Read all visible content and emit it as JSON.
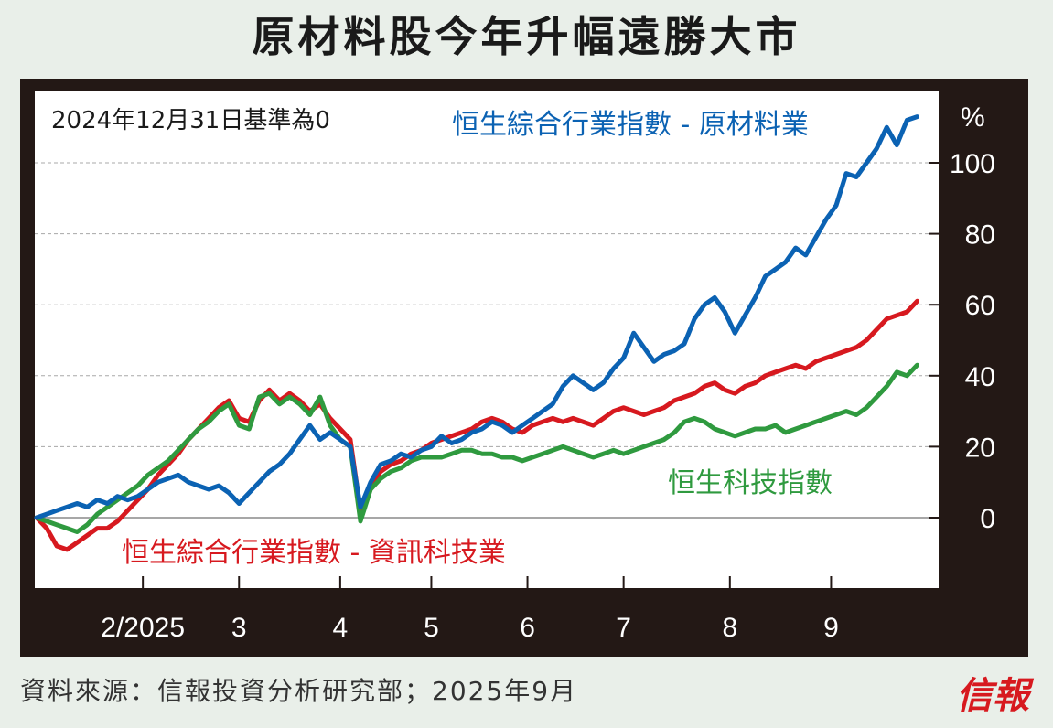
{
  "chart_data": {
    "type": "line",
    "title": "原材料股今年升幅遠勝大市",
    "note": "2024年12月31日基準為0",
    "ylabel": "%",
    "ylim": [
      -20,
      118
    ],
    "yticks": [
      0,
      20,
      40,
      60,
      80,
      100
    ],
    "xticks": [
      {
        "label": "2/2025",
        "x": 21
      },
      {
        "label": "3",
        "x": 40
      },
      {
        "label": "4",
        "x": 60
      },
      {
        "label": "5",
        "x": 78
      },
      {
        "label": "6",
        "x": 97
      },
      {
        "label": "7",
        "x": 116
      },
      {
        "label": "8",
        "x": 137
      },
      {
        "label": "9",
        "x": 157
      }
    ],
    "xlim": [
      0,
      175
    ],
    "grid": true,
    "series": [
      {
        "name": "恒生綜合行業指數 - 原材料業",
        "color": "#0b62b3",
        "points": [
          [
            0,
            0
          ],
          [
            2,
            1
          ],
          [
            4,
            2
          ],
          [
            6,
            3
          ],
          [
            8,
            4
          ],
          [
            10,
            3
          ],
          [
            12,
            5
          ],
          [
            14,
            4
          ],
          [
            16,
            6
          ],
          [
            18,
            5
          ],
          [
            20,
            6
          ],
          [
            22,
            8
          ],
          [
            24,
            10
          ],
          [
            26,
            11
          ],
          [
            28,
            12
          ],
          [
            30,
            10
          ],
          [
            32,
            9
          ],
          [
            34,
            8
          ],
          [
            36,
            9
          ],
          [
            38,
            7
          ],
          [
            40,
            4
          ],
          [
            42,
            7
          ],
          [
            44,
            10
          ],
          [
            46,
            13
          ],
          [
            48,
            15
          ],
          [
            50,
            18
          ],
          [
            52,
            22
          ],
          [
            54,
            26
          ],
          [
            56,
            22
          ],
          [
            58,
            24
          ],
          [
            60,
            22
          ],
          [
            62,
            20
          ],
          [
            64,
            3
          ],
          [
            66,
            10
          ],
          [
            68,
            15
          ],
          [
            70,
            16
          ],
          [
            72,
            18
          ],
          [
            74,
            17
          ],
          [
            76,
            19
          ],
          [
            78,
            20
          ],
          [
            80,
            23
          ],
          [
            82,
            21
          ],
          [
            84,
            22
          ],
          [
            86,
            24
          ],
          [
            88,
            25
          ],
          [
            90,
            27
          ],
          [
            92,
            26
          ],
          [
            94,
            24
          ],
          [
            96,
            26
          ],
          [
            98,
            28
          ],
          [
            100,
            30
          ],
          [
            102,
            32
          ],
          [
            104,
            37
          ],
          [
            106,
            40
          ],
          [
            108,
            38
          ],
          [
            110,
            36
          ],
          [
            112,
            38
          ],
          [
            114,
            42
          ],
          [
            116,
            45
          ],
          [
            118,
            52
          ],
          [
            120,
            48
          ],
          [
            122,
            44
          ],
          [
            124,
            46
          ],
          [
            126,
            47
          ],
          [
            128,
            49
          ],
          [
            130,
            56
          ],
          [
            132,
            60
          ],
          [
            134,
            62
          ],
          [
            136,
            58
          ],
          [
            138,
            52
          ],
          [
            140,
            57
          ],
          [
            142,
            62
          ],
          [
            144,
            68
          ],
          [
            146,
            70
          ],
          [
            148,
            72
          ],
          [
            150,
            76
          ],
          [
            152,
            74
          ],
          [
            154,
            79
          ],
          [
            156,
            84
          ],
          [
            158,
            88
          ],
          [
            160,
            97
          ],
          [
            162,
            96
          ],
          [
            164,
            100
          ],
          [
            166,
            104
          ],
          [
            168,
            110
          ],
          [
            170,
            105
          ],
          [
            172,
            112
          ],
          [
            174,
            113
          ]
        ]
      },
      {
        "name": "恒生綜合行業指數 - 資訊科技業",
        "color": "#d7191f",
        "points": [
          [
            0,
            0
          ],
          [
            2,
            -3
          ],
          [
            4,
            -8
          ],
          [
            6,
            -9
          ],
          [
            8,
            -7
          ],
          [
            10,
            -5
          ],
          [
            12,
            -3
          ],
          [
            14,
            -3
          ],
          [
            16,
            -1
          ],
          [
            18,
            2
          ],
          [
            20,
            5
          ],
          [
            22,
            8
          ],
          [
            24,
            12
          ],
          [
            26,
            15
          ],
          [
            28,
            18
          ],
          [
            30,
            22
          ],
          [
            32,
            25
          ],
          [
            34,
            28
          ],
          [
            36,
            31
          ],
          [
            38,
            33
          ],
          [
            40,
            28
          ],
          [
            42,
            27
          ],
          [
            44,
            33
          ],
          [
            46,
            36
          ],
          [
            48,
            33
          ],
          [
            50,
            35
          ],
          [
            52,
            33
          ],
          [
            54,
            30
          ],
          [
            56,
            32
          ],
          [
            58,
            28
          ],
          [
            60,
            25
          ],
          [
            62,
            22
          ],
          [
            64,
            2
          ],
          [
            66,
            9
          ],
          [
            68,
            13
          ],
          [
            70,
            15
          ],
          [
            72,
            16
          ],
          [
            74,
            18
          ],
          [
            76,
            19
          ],
          [
            78,
            21
          ],
          [
            80,
            22
          ],
          [
            82,
            23
          ],
          [
            84,
            24
          ],
          [
            86,
            25
          ],
          [
            88,
            27
          ],
          [
            90,
            28
          ],
          [
            92,
            27
          ],
          [
            94,
            25
          ],
          [
            96,
            24
          ],
          [
            98,
            26
          ],
          [
            100,
            27
          ],
          [
            102,
            28
          ],
          [
            104,
            27
          ],
          [
            106,
            28
          ],
          [
            108,
            27
          ],
          [
            110,
            26
          ],
          [
            112,
            28
          ],
          [
            114,
            30
          ],
          [
            116,
            31
          ],
          [
            118,
            30
          ],
          [
            120,
            29
          ],
          [
            122,
            30
          ],
          [
            124,
            31
          ],
          [
            126,
            33
          ],
          [
            128,
            34
          ],
          [
            130,
            35
          ],
          [
            132,
            37
          ],
          [
            134,
            38
          ],
          [
            136,
            36
          ],
          [
            138,
            35
          ],
          [
            140,
            37
          ],
          [
            142,
            38
          ],
          [
            144,
            40
          ],
          [
            146,
            41
          ],
          [
            148,
            42
          ],
          [
            150,
            43
          ],
          [
            152,
            42
          ],
          [
            154,
            44
          ],
          [
            156,
            45
          ],
          [
            158,
            46
          ],
          [
            160,
            47
          ],
          [
            162,
            48
          ],
          [
            164,
            50
          ],
          [
            166,
            53
          ],
          [
            168,
            56
          ],
          [
            170,
            57
          ],
          [
            172,
            58
          ],
          [
            174,
            61
          ]
        ]
      },
      {
        "name": "恒生科技指數",
        "color": "#2f9a3f",
        "points": [
          [
            0,
            0
          ],
          [
            2,
            -1
          ],
          [
            4,
            -2
          ],
          [
            6,
            -3
          ],
          [
            8,
            -4
          ],
          [
            10,
            -2
          ],
          [
            12,
            1
          ],
          [
            14,
            3
          ],
          [
            16,
            5
          ],
          [
            18,
            7
          ],
          [
            20,
            9
          ],
          [
            22,
            12
          ],
          [
            24,
            14
          ],
          [
            26,
            16
          ],
          [
            28,
            19
          ],
          [
            30,
            22
          ],
          [
            32,
            25
          ],
          [
            34,
            27
          ],
          [
            36,
            30
          ],
          [
            38,
            32
          ],
          [
            40,
            26
          ],
          [
            42,
            25
          ],
          [
            44,
            34
          ],
          [
            46,
            35
          ],
          [
            48,
            32
          ],
          [
            50,
            34
          ],
          [
            52,
            32
          ],
          [
            54,
            29
          ],
          [
            56,
            34
          ],
          [
            58,
            26
          ],
          [
            60,
            22
          ],
          [
            62,
            20
          ],
          [
            64,
            -1
          ],
          [
            66,
            8
          ],
          [
            68,
            11
          ],
          [
            70,
            13
          ],
          [
            72,
            14
          ],
          [
            74,
            16
          ],
          [
            76,
            17
          ],
          [
            78,
            17
          ],
          [
            80,
            17
          ],
          [
            82,
            18
          ],
          [
            84,
            19
          ],
          [
            86,
            19
          ],
          [
            88,
            18
          ],
          [
            90,
            18
          ],
          [
            92,
            17
          ],
          [
            94,
            17
          ],
          [
            96,
            16
          ],
          [
            98,
            17
          ],
          [
            100,
            18
          ],
          [
            102,
            19
          ],
          [
            104,
            20
          ],
          [
            106,
            19
          ],
          [
            108,
            18
          ],
          [
            110,
            17
          ],
          [
            112,
            18
          ],
          [
            114,
            19
          ],
          [
            116,
            18
          ],
          [
            118,
            19
          ],
          [
            120,
            20
          ],
          [
            122,
            21
          ],
          [
            124,
            22
          ],
          [
            126,
            24
          ],
          [
            128,
            27
          ],
          [
            130,
            28
          ],
          [
            132,
            27
          ],
          [
            134,
            25
          ],
          [
            136,
            24
          ],
          [
            138,
            23
          ],
          [
            140,
            24
          ],
          [
            142,
            25
          ],
          [
            144,
            25
          ],
          [
            146,
            26
          ],
          [
            148,
            24
          ],
          [
            150,
            25
          ],
          [
            152,
            26
          ],
          [
            154,
            27
          ],
          [
            156,
            28
          ],
          [
            158,
            29
          ],
          [
            160,
            30
          ],
          [
            162,
            29
          ],
          [
            164,
            31
          ],
          [
            166,
            34
          ],
          [
            168,
            37
          ],
          [
            170,
            41
          ],
          [
            172,
            40
          ],
          [
            174,
            43
          ]
        ]
      }
    ]
  },
  "labels": {
    "materials": "恒生綜合行業指數 - 原材料業",
    "it": "恒生綜合行業指數 - 資訊科技業",
    "tech": "恒生科技指數"
  },
  "footer": {
    "source": "資料來源：信報投資分析研究部；2025年9月",
    "logo": "信報"
  }
}
